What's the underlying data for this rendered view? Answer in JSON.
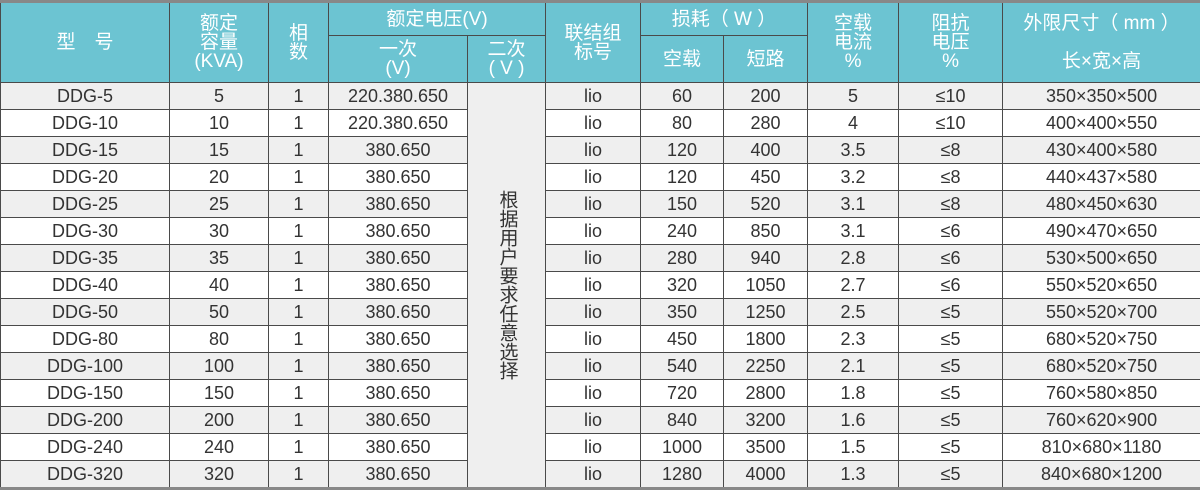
{
  "colors": {
    "header_bg": "#6cc4d2",
    "row_alt": "#efefef",
    "text": "#333333"
  },
  "headers": {
    "model": "型　号",
    "capacity": [
      "额定",
      "容量",
      "(KVA)"
    ],
    "phases": [
      "相",
      "数"
    ],
    "voltage": "额定电压(V)",
    "primary": [
      "一次",
      "(V)"
    ],
    "secondary": [
      "二次",
      "( V )"
    ],
    "connection": [
      "联结组",
      "标号"
    ],
    "loss": "损耗（ W ）",
    "loss_noload": "空载",
    "loss_short": "短路",
    "noload_current": [
      "空载",
      "电流",
      "%"
    ],
    "impedance": [
      "阻抗",
      "电压",
      "%"
    ],
    "dimensions": "外限尺寸（ mm ）",
    "dimensions_sub": "长×宽×高"
  },
  "secondary_note": "根据用户要求任意选择",
  "rows": [
    [
      "DDG-5",
      "5",
      "1",
      "220.380.650",
      "lio",
      "60",
      "200",
      "5",
      "≤10",
      "350×350×500"
    ],
    [
      "DDG-10",
      "10",
      "1",
      "220.380.650",
      "lio",
      "80",
      "280",
      "4",
      "≤10",
      "400×400×550"
    ],
    [
      "DDG-15",
      "15",
      "1",
      "380.650",
      "lio",
      "120",
      "400",
      "3.5",
      "≤8",
      "430×400×580"
    ],
    [
      "DDG-20",
      "20",
      "1",
      "380.650",
      "lio",
      "120",
      "450",
      "3.2",
      "≤8",
      "440×437×580"
    ],
    [
      "DDG-25",
      "25",
      "1",
      "380.650",
      "lio",
      "150",
      "520",
      "3.1",
      "≤8",
      "480×450×630"
    ],
    [
      "DDG-30",
      "30",
      "1",
      "380.650",
      "lio",
      "240",
      "850",
      "3.1",
      "≤6",
      "490×470×650"
    ],
    [
      "DDG-35",
      "35",
      "1",
      "380.650",
      "lio",
      "280",
      "940",
      "2.8",
      "≤6",
      "530×500×650"
    ],
    [
      "DDG-40",
      "40",
      "1",
      "380.650",
      "lio",
      "320",
      "1050",
      "2.7",
      "≤6",
      "550×520×650"
    ],
    [
      "DDG-50",
      "50",
      "1",
      "380.650",
      "lio",
      "350",
      "1250",
      "2.5",
      "≤5",
      "550×520×700"
    ],
    [
      "DDG-80",
      "80",
      "1",
      "380.650",
      "lio",
      "450",
      "1800",
      "2.3",
      "≤5",
      "680×520×750"
    ],
    [
      "DDG-100",
      "100",
      "1",
      "380.650",
      "lio",
      "540",
      "2250",
      "2.1",
      "≤5",
      "680×520×750"
    ],
    [
      "DDG-150",
      "150",
      "1",
      "380.650",
      "lio",
      "720",
      "2800",
      "1.8",
      "≤5",
      "760×580×850"
    ],
    [
      "DDG-200",
      "200",
      "1",
      "380.650",
      "lio",
      "840",
      "3200",
      "1.6",
      "≤5",
      "760×620×900"
    ],
    [
      "DDG-240",
      "240",
      "1",
      "380.650",
      "lio",
      "1000",
      "3500",
      "1.5",
      "≤5",
      "810×680×1180"
    ],
    [
      "DDG-320",
      "320",
      "1",
      "380.650",
      "lio",
      "1280",
      "4000",
      "1.3",
      "≤5",
      "840×680×1200"
    ]
  ]
}
